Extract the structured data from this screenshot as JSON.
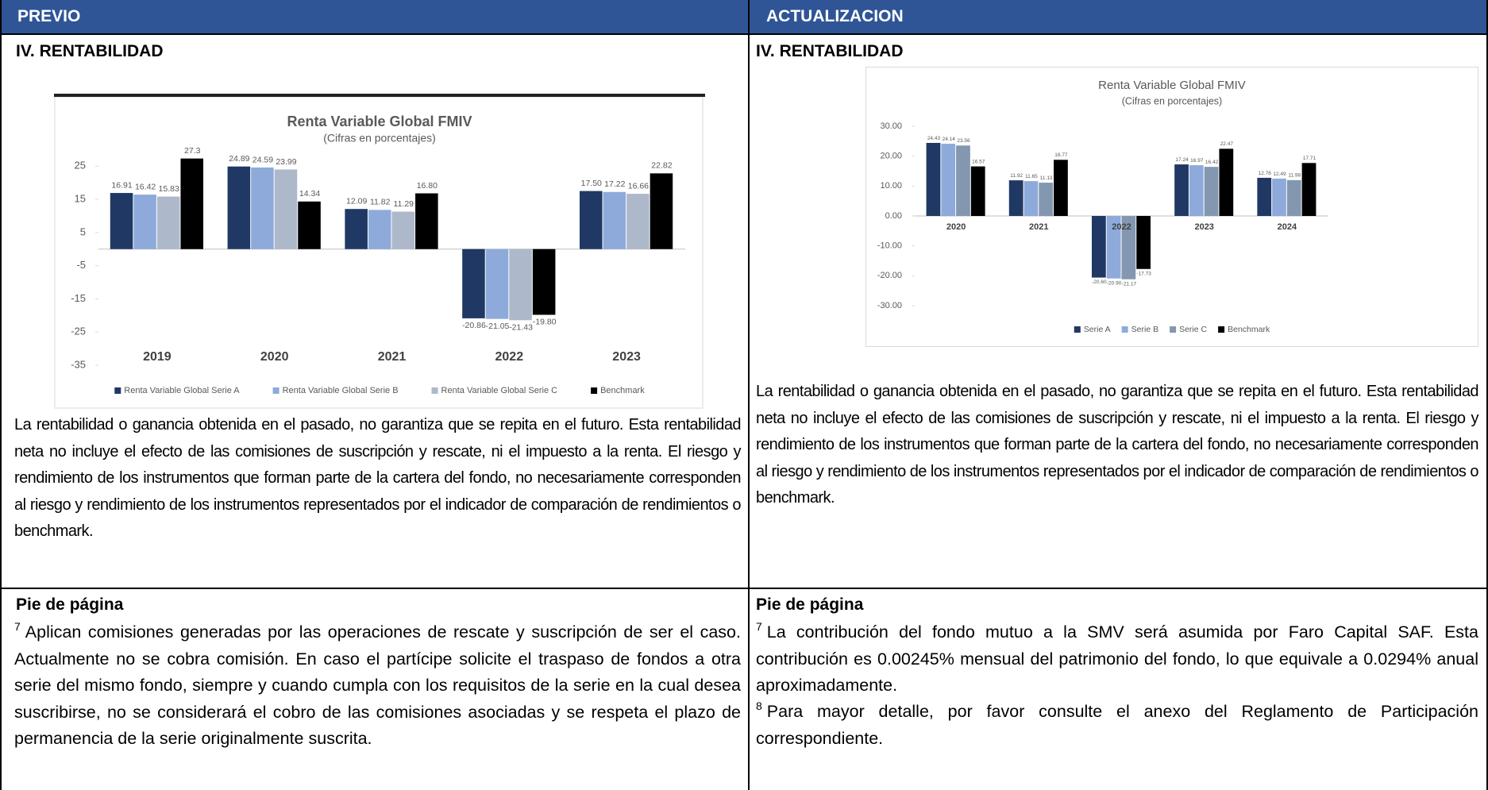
{
  "header": {
    "left": "PREVIO",
    "right": "ACTUALIZACION"
  },
  "previo": {
    "section": "IV. RENTABILIDAD",
    "paragraph": "La rentabilidad o ganancia obtenida en el pasado, no garantiza que se repita en el futuro. Esta rentabilidad neta no incluye el efecto de las comisiones de suscripción y rescate, ni el impuesto a la renta. El riesgo y rendimiento de los instrumentos que forman parte de la cartera del fondo, no necesariamente corresponden al riesgo y rendimiento de los instrumentos representados por el indicador de comparación de rendimientos o benchmark.",
    "footer_title": "Pie de página",
    "footnotes": [
      {
        "number": "7",
        "text": "Aplican comisiones generadas por las operaciones de rescate y suscripción de ser el caso. Actualmente no se cobra comisión. En caso el partícipe solicite el traspaso de fondos a otra serie del mismo fondo, siempre y cuando cumpla con los requisitos de la serie en la cual desea suscribirse, no se considerará el cobro de las comisiones asociadas y se respeta el plazo de permanencia de la serie originalmente suscrita."
      }
    ]
  },
  "actualizacion": {
    "section": "IV. RENTABILIDAD",
    "paragraph": "La rentabilidad o ganancia obtenida en el pasado, no garantiza que se repita en el futuro. Esta rentabilidad neta no incluye el efecto de las comisiones de suscripción y rescate, ni el impuesto a la renta. El riesgo y rendimiento de los instrumentos que forman parte de la cartera del fondo, no necesariamente corresponden al riesgo y rendimiento de los instrumentos representados por el indicador de comparación de rendimientos o benchmark.",
    "footer_title": "Pie de página",
    "footnotes": [
      {
        "number": "7",
        "text": "La contribución del fondo mutuo a la SMV será asumida por Faro Capital SAF. Esta contribución es 0.00245% mensual del patrimonio del fondo, lo que equivale a 0.0294% anual aproximadamente."
      },
      {
        "number": "8",
        "text": "Para mayor detalle, por favor consulte el anexo del Reglamento de Participación correspondiente."
      }
    ]
  },
  "chart_data": [
    {
      "type": "bar",
      "title": "Renta Variable Global FMIV",
      "subtitle": "(Cifras en porcentajes)",
      "categories": [
        "2019",
        "2020",
        "2021",
        "2022",
        "2023"
      ],
      "series": [
        {
          "name": "Renta Variable Global Serie A",
          "color": "#203864",
          "values": [
            16.91,
            24.89,
            12.09,
            -20.86,
            17.5
          ],
          "value_labels": [
            "16.91",
            "24.89",
            "12.09",
            "-20.86",
            "17.50"
          ]
        },
        {
          "name": "Renta Variable Global Serie B",
          "color": "#8eaadb",
          "values": [
            16.42,
            24.59,
            11.82,
            -21.05,
            17.22
          ],
          "value_labels": [
            "16.42",
            "24.59",
            "11.82",
            "-21.05",
            "17.22"
          ]
        },
        {
          "name": "Renta Variable Global Serie C",
          "color": "#adb9ca",
          "values": [
            15.83,
            23.99,
            11.29,
            -21.43,
            16.66
          ],
          "value_labels": [
            "15.83",
            "23.99",
            "11.29",
            "-21.43",
            "16.66"
          ]
        },
        {
          "name": "Benchmark",
          "color": "#000000",
          "values": [
            27.3,
            14.34,
            16.8,
            -19.8,
            22.82
          ],
          "value_labels": [
            "27.3",
            "14.34",
            "16.80",
            "-19.80",
            "22.82"
          ]
        }
      ],
      "ylim": [
        -35,
        32
      ],
      "yticks": [
        25,
        15,
        5,
        -5,
        -15,
        -25,
        -35
      ],
      "grid": false,
      "legend": "bottom"
    },
    {
      "type": "bar",
      "title": "Renta Variable Global FMIV",
      "subtitle": "(Cifras en porcentajes)",
      "categories": [
        "2020",
        "2021",
        "2022",
        "2023",
        "2024"
      ],
      "series": [
        {
          "name": "Serie A",
          "color": "#203864",
          "values": [
            24.43,
            11.92,
            -20.6,
            17.24,
            12.76
          ],
          "value_labels": [
            "24.43",
            "11.92",
            "-20.60",
            "17.24",
            "12.76"
          ]
        },
        {
          "name": "Serie B",
          "color": "#8eaadb",
          "values": [
            24.14,
            11.65,
            -20.9,
            16.97,
            12.49
          ],
          "value_labels": [
            "24.14",
            "11.65",
            "-20.90",
            "16.97",
            "12.49"
          ]
        },
        {
          "name": "Serie C",
          "color": "#8497b0",
          "values": [
            23.56,
            11.13,
            -21.17,
            16.42,
            11.98
          ],
          "value_labels": [
            "23.56",
            "11.13",
            "-21.17",
            "16.42",
            "11.98"
          ]
        },
        {
          "name": "Benchmark",
          "color": "#000000",
          "values": [
            16.57,
            18.77,
            -17.73,
            22.47,
            17.71
          ],
          "value_labels": [
            "16.57",
            "18.77",
            "-17.73",
            "22.47",
            "17.71"
          ]
        }
      ],
      "ylim": [
        -30,
        30
      ],
      "yticks": [
        {
          "value": 30,
          "label": "30.00"
        },
        {
          "value": 20,
          "label": "20.00"
        },
        {
          "value": 10,
          "label": "10.00"
        },
        {
          "value": 0,
          "label": "0.00"
        },
        {
          "value": -10,
          "label": "-10.00"
        },
        {
          "value": -20,
          "label": "-20.00"
        },
        {
          "value": -30,
          "label": "-30.00"
        }
      ],
      "grid": false,
      "legend": "bottom"
    }
  ]
}
